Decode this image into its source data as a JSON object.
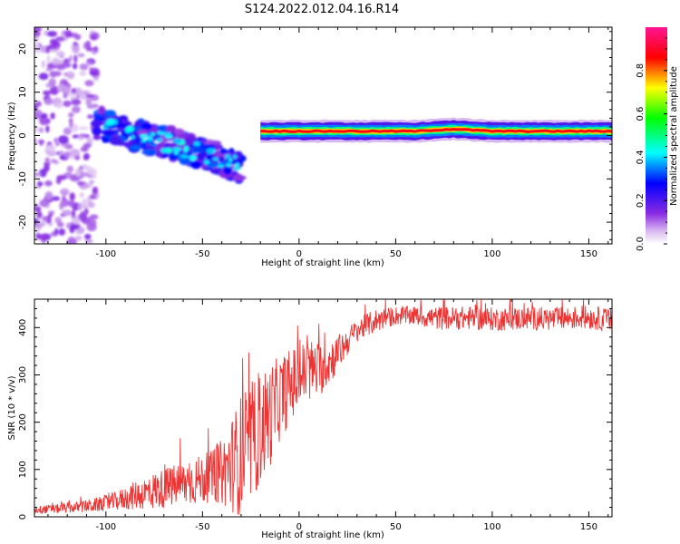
{
  "figure_title": "S124.2022.012.04.16.R14",
  "chart_data": [
    {
      "type": "heatmap",
      "title": "",
      "xlabel": "Height of straight line (km)",
      "ylabel": "Frequency (Hz)",
      "xlim": [
        -137,
        162
      ],
      "ylim": [
        -25,
        25
      ],
      "xticks": [
        -100,
        -50,
        0,
        50,
        100,
        150
      ],
      "yticks": [
        -20,
        -10,
        0,
        10,
        20
      ],
      "colorbar": {
        "label": "Normalized spectral amplitude",
        "range": [
          0,
          1
        ],
        "ticks": [
          "0.0",
          "0.2",
          "0.4",
          "0.6",
          "0.8"
        ],
        "tick_values": [
          0.0,
          0.2,
          0.4,
          0.6,
          0.8
        ],
        "colormap": [
          "#ffffff",
          "#8a2be2",
          "#0000ff",
          "#00ffff",
          "#00ff00",
          "#ffff00",
          "#ff0000",
          "#ff1493"
        ]
      },
      "features": [
        {
          "name": "noisy low-altitude scatter",
          "x_range": [
            -137,
            -105
          ],
          "y_range": [
            -25,
            25
          ],
          "amplitude": 0.15
        },
        {
          "name": "descending mid band",
          "x": [
            -105,
            -85,
            -65,
            -45,
            -30
          ],
          "y": [
            3,
            0,
            -2,
            -5,
            -7
          ],
          "amplitude": 0.35
        },
        {
          "name": "steady carrier line",
          "x": [
            -20,
            0,
            20,
            40,
            60,
            80,
            100,
            120,
            140,
            162
          ],
          "y": [
            1,
            1,
            1,
            1,
            1,
            1.5,
            1,
            1,
            1,
            1
          ],
          "amplitude": 0.9
        }
      ]
    },
    {
      "type": "line",
      "title": "",
      "xlabel": "Height of straight line (km)",
      "ylabel": "SNR (10 * v/v)",
      "xlim": [
        -137,
        162
      ],
      "ylim": [
        0,
        460
      ],
      "xticks": [
        -100,
        -50,
        0,
        50,
        100,
        150
      ],
      "yticks": [
        0,
        100,
        200,
        300,
        400
      ],
      "series": [
        {
          "name": "SNR",
          "color": "#ee3333",
          "x": [
            -137,
            -125,
            -115,
            -105,
            -95,
            -85,
            -75,
            -65,
            -55,
            -45,
            -40,
            -35,
            -30,
            -25,
            -20,
            -15,
            -10,
            -5,
            0,
            5,
            10,
            15,
            20,
            25,
            30,
            40,
            50,
            60,
            70,
            80,
            90,
            100,
            110,
            120,
            130,
            140,
            150,
            162
          ],
          "y": [
            15,
            17,
            20,
            25,
            33,
            45,
            55,
            65,
            75,
            85,
            95,
            110,
            130,
            155,
            185,
            215,
            250,
            275,
            295,
            310,
            310,
            325,
            345,
            370,
            395,
            415,
            425,
            425,
            420,
            420,
            420,
            418,
            418,
            420,
            418,
            420,
            422,
            415
          ],
          "spread": [
            8,
            10,
            12,
            15,
            20,
            30,
            40,
            45,
            50,
            55,
            70,
            100,
            130,
            130,
            120,
            110,
            90,
            80,
            70,
            70,
            60,
            50,
            40,
            30,
            25,
            25,
            20,
            20,
            25,
            25,
            25,
            25,
            25,
            25,
            25,
            25,
            25,
            25
          ]
        }
      ]
    }
  ]
}
